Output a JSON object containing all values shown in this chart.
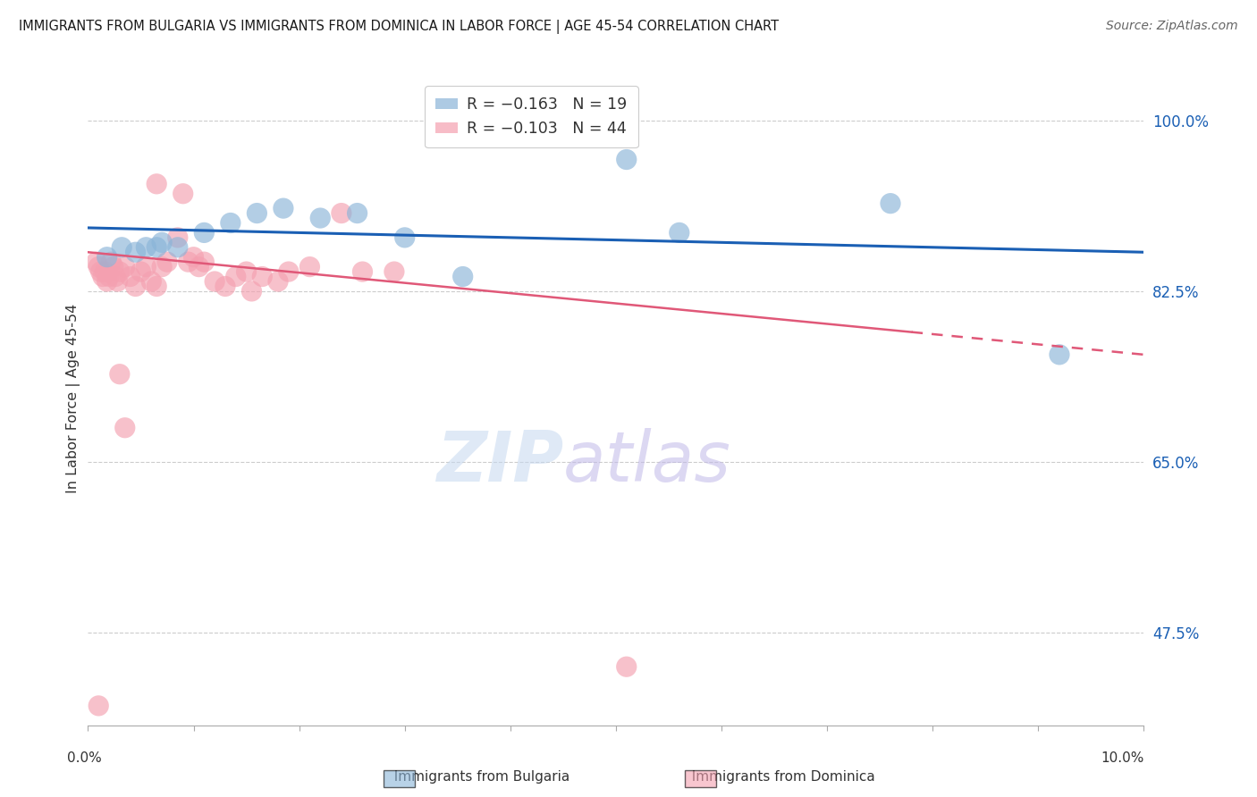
{
  "title": "IMMIGRANTS FROM BULGARIA VS IMMIGRANTS FROM DOMINICA IN LABOR FORCE | AGE 45-54 CORRELATION CHART",
  "source": "Source: ZipAtlas.com",
  "ylabel": "In Labor Force | Age 45-54",
  "yticks": [
    47.5,
    65.0,
    82.5,
    100.0
  ],
  "ytick_labels": [
    "47.5%",
    "65.0%",
    "82.5%",
    "100.0%"
  ],
  "xlim": [
    0.0,
    10.0
  ],
  "ylim": [
    38.0,
    105.0
  ],
  "watermark_zip": "ZIP",
  "watermark_atlas": "atlas",
  "legend_entry_blue": "R = −0.163   N = 19",
  "legend_entry_pink": "R = −0.103   N = 44",
  "bulgaria_color": "#8ab4d8",
  "dominica_color": "#f4a0b0",
  "trendline_bulgaria_color": "#1a5fb4",
  "trendline_dominica_color": "#e05878",
  "bg_color": "#ffffff",
  "grid_color": "#cccccc",
  "bulgaria_points": [
    [
      0.18,
      86.0
    ],
    [
      0.32,
      87.0
    ],
    [
      0.45,
      86.5
    ],
    [
      0.55,
      87.0
    ],
    [
      0.65,
      87.0
    ],
    [
      0.7,
      87.5
    ],
    [
      0.85,
      87.0
    ],
    [
      1.1,
      88.5
    ],
    [
      1.35,
      89.5
    ],
    [
      1.6,
      90.5
    ],
    [
      1.85,
      91.0
    ],
    [
      2.2,
      90.0
    ],
    [
      2.55,
      90.5
    ],
    [
      3.0,
      88.0
    ],
    [
      3.55,
      84.0
    ],
    [
      5.1,
      96.0
    ],
    [
      5.6,
      88.5
    ],
    [
      7.6,
      91.5
    ],
    [
      9.2,
      76.0
    ]
  ],
  "dominica_points": [
    [
      0.08,
      85.5
    ],
    [
      0.1,
      85.0
    ],
    [
      0.12,
      84.5
    ],
    [
      0.14,
      84.0
    ],
    [
      0.16,
      84.5
    ],
    [
      0.18,
      83.5
    ],
    [
      0.2,
      84.0
    ],
    [
      0.22,
      85.5
    ],
    [
      0.24,
      85.0
    ],
    [
      0.26,
      84.0
    ],
    [
      0.28,
      83.5
    ],
    [
      0.3,
      84.5
    ],
    [
      0.35,
      85.0
    ],
    [
      0.4,
      84.0
    ],
    [
      0.45,
      83.0
    ],
    [
      0.5,
      84.5
    ],
    [
      0.55,
      85.0
    ],
    [
      0.6,
      83.5
    ],
    [
      0.65,
      83.0
    ],
    [
      0.65,
      93.5
    ],
    [
      0.7,
      85.0
    ],
    [
      0.75,
      85.5
    ],
    [
      0.85,
      88.0
    ],
    [
      0.9,
      92.5
    ],
    [
      0.95,
      85.5
    ],
    [
      1.0,
      86.0
    ],
    [
      1.05,
      85.0
    ],
    [
      1.1,
      85.5
    ],
    [
      1.2,
      83.5
    ],
    [
      1.3,
      83.0
    ],
    [
      1.4,
      84.0
    ],
    [
      1.5,
      84.5
    ],
    [
      1.55,
      82.5
    ],
    [
      1.65,
      84.0
    ],
    [
      1.8,
      83.5
    ],
    [
      1.9,
      84.5
    ],
    [
      2.1,
      85.0
    ],
    [
      2.4,
      90.5
    ],
    [
      2.6,
      84.5
    ],
    [
      2.9,
      84.5
    ],
    [
      0.3,
      74.0
    ],
    [
      0.35,
      68.5
    ],
    [
      5.1,
      44.0
    ],
    [
      0.1,
      40.0
    ]
  ],
  "bulgaria_trend_x": [
    0.0,
    10.0
  ],
  "bulgaria_trend_y": [
    89.0,
    86.5
  ],
  "dominica_trend_x": [
    0.0,
    10.0
  ],
  "dominica_trend_y": [
    86.5,
    76.0
  ],
  "dominica_dash_start_x": 7.8,
  "bottom_legend_bulgaria": "Immigrants from Bulgaria",
  "bottom_legend_dominica": "Immigrants from Dominica"
}
